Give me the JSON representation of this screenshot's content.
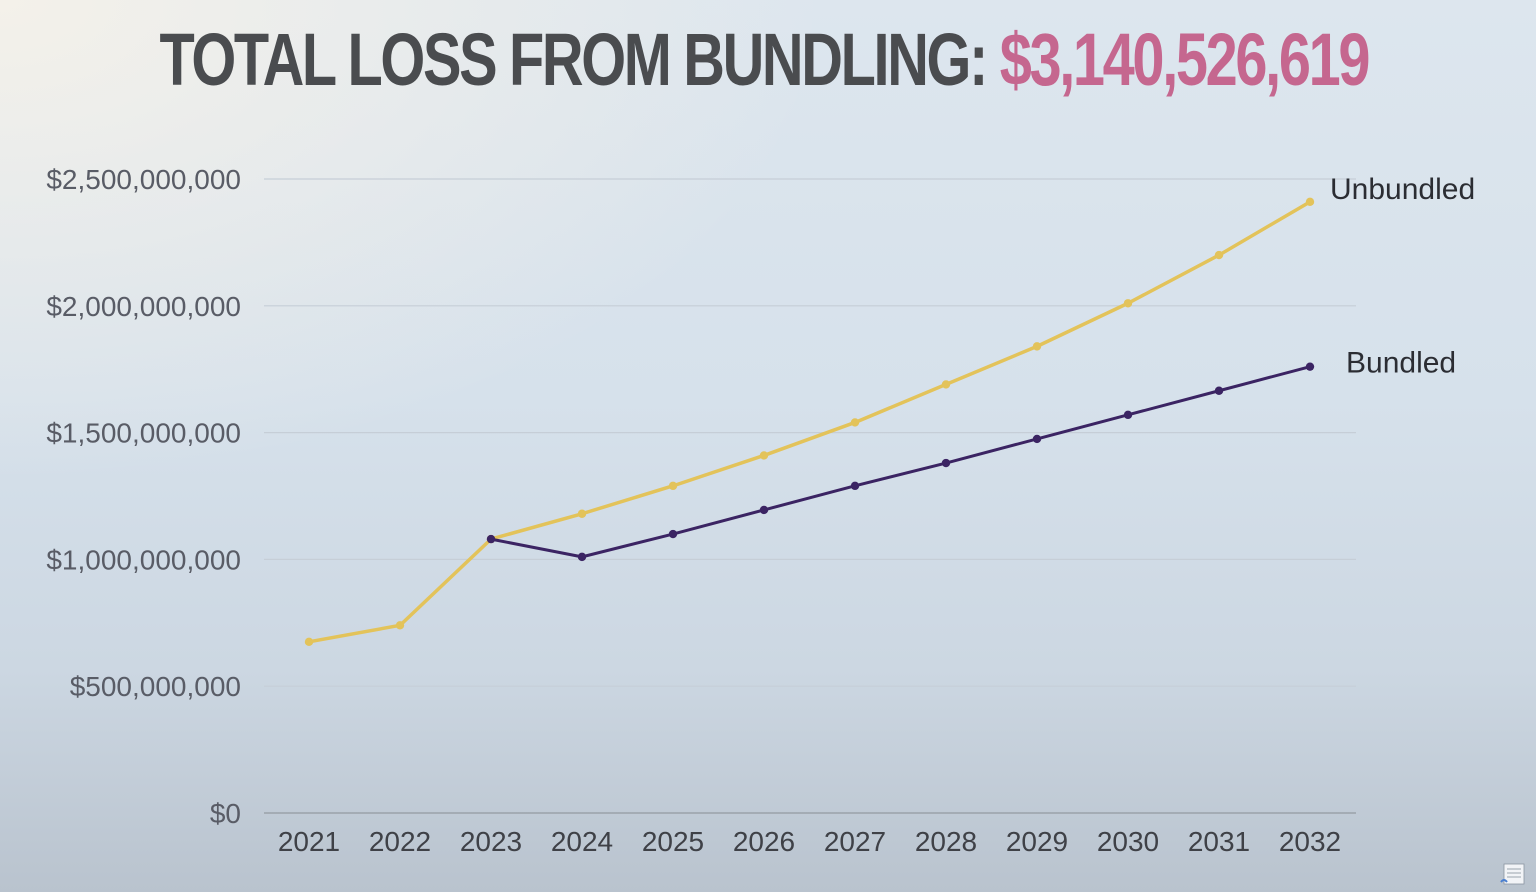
{
  "title": {
    "main": "TOTAL LOSS FROM BUNDLING:",
    "value": "$3,140,526,619"
  },
  "colors": {
    "title_text": "#4a4c4f",
    "title_value": "#c5678f",
    "unbundled": "#e3c35a",
    "bundled": "#3b2463",
    "grid": "#c6ced7",
    "axis": "#9aa1aa"
  },
  "chart_data": {
    "type": "line",
    "title": "TOTAL LOSS FROM BUNDLING: $3,140,526,619",
    "xlabel": "",
    "ylabel": "",
    "x": [
      "2021",
      "2022",
      "2023",
      "2024",
      "2025",
      "2026",
      "2027",
      "2028",
      "2029",
      "2030",
      "2031",
      "2032"
    ],
    "ylim": [
      0,
      2500000000
    ],
    "yticks": [
      0,
      500000000,
      1000000000,
      1500000000,
      2000000000,
      2500000000
    ],
    "ytick_labels": [
      "$0",
      "$500,000,000",
      "$1,000,000,000",
      "$1,500,000,000",
      "$2,000,000,000",
      "$2,500,000,000"
    ],
    "grid": true,
    "legend": "series labels at line ends (right)",
    "series": [
      {
        "name": "Unbundled",
        "color": "#e3c35a",
        "x": [
          "2021",
          "2022",
          "2023",
          "2024",
          "2025",
          "2026",
          "2027",
          "2028",
          "2029",
          "2030",
          "2031",
          "2032"
        ],
        "values": [
          675000000,
          740000000,
          1080000000,
          1180000000,
          1290000000,
          1410000000,
          1540000000,
          1690000000,
          1840000000,
          2010000000,
          2200000000,
          2410000000
        ]
      },
      {
        "name": "Bundled",
        "color": "#3b2463",
        "x": [
          "2023",
          "2024",
          "2025",
          "2026",
          "2027",
          "2028",
          "2029",
          "2030",
          "2031",
          "2032"
        ],
        "values": [
          1080000000,
          1010000000,
          1100000000,
          1195000000,
          1290000000,
          1380000000,
          1475000000,
          1570000000,
          1665000000,
          1760000000
        ]
      }
    ]
  }
}
